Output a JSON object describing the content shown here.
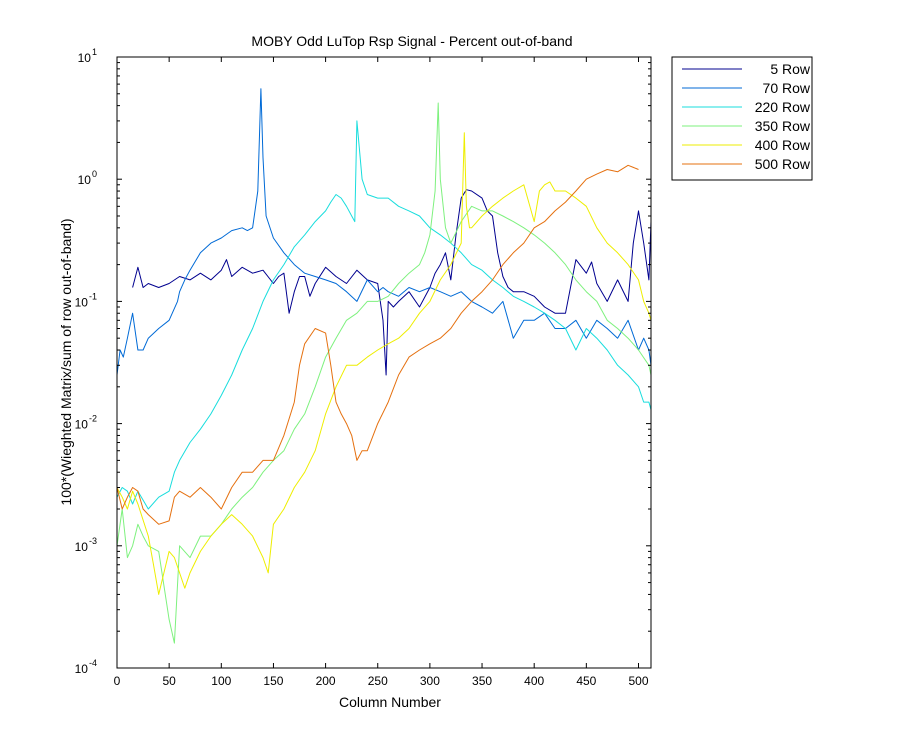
{
  "chart_data": {
    "type": "line",
    "title": "MOBY Odd LuTop Rsp Signal - Percent out-of-band",
    "xlabel": "Column Number",
    "ylabel": "100*(Wieghted Matrix/sum of row out-of-band)",
    "xlim": [
      0,
      512
    ],
    "ylim": [
      0.0001,
      10
    ],
    "yscale": "log",
    "xticks": [
      0,
      50,
      100,
      150,
      200,
      250,
      300,
      350,
      400,
      450,
      500
    ],
    "yticks": [
      {
        "value": 0.0001,
        "base": "10",
        "exp": "-4"
      },
      {
        "value": 0.001,
        "base": "10",
        "exp": "-3"
      },
      {
        "value": 0.01,
        "base": "10",
        "exp": "-2"
      },
      {
        "value": 0.1,
        "base": "10",
        "exp": "-1"
      },
      {
        "value": 1,
        "base": "10",
        "exp": "0"
      },
      {
        "value": 10,
        "base": "10",
        "exp": "1"
      }
    ],
    "grid": false,
    "legend_position": "outside-top-right",
    "series": [
      {
        "name": "5 Row",
        "color": "#00008F",
        "x": [
          15,
          20,
          25,
          30,
          40,
          50,
          60,
          70,
          80,
          90,
          100,
          105,
          110,
          120,
          130,
          140,
          150,
          155,
          160,
          165,
          170,
          175,
          180,
          185,
          190,
          200,
          210,
          220,
          230,
          240,
          250,
          255,
          258,
          260,
          265,
          270,
          280,
          290,
          300,
          305,
          310,
          315,
          320,
          325,
          330,
          335,
          340,
          350,
          355,
          360,
          365,
          370,
          375,
          380,
          390,
          400,
          410,
          420,
          430,
          440,
          450,
          455,
          460,
          470,
          480,
          490,
          495,
          500,
          505,
          510,
          512
        ],
        "y": [
          0.13,
          0.19,
          0.13,
          0.14,
          0.13,
          0.14,
          0.16,
          0.15,
          0.17,
          0.15,
          0.18,
          0.22,
          0.16,
          0.19,
          0.17,
          0.18,
          0.14,
          0.16,
          0.17,
          0.08,
          0.12,
          0.16,
          0.16,
          0.11,
          0.14,
          0.19,
          0.16,
          0.14,
          0.18,
          0.15,
          0.14,
          0.07,
          0.025,
          0.1,
          0.09,
          0.1,
          0.12,
          0.09,
          0.13,
          0.17,
          0.2,
          0.25,
          0.15,
          0.35,
          0.7,
          0.82,
          0.8,
          0.7,
          0.55,
          0.5,
          0.25,
          0.16,
          0.13,
          0.12,
          0.12,
          0.11,
          0.09,
          0.08,
          0.08,
          0.22,
          0.17,
          0.21,
          0.14,
          0.1,
          0.15,
          0.1,
          0.3,
          0.55,
          0.3,
          0.15,
          0.45
        ]
      },
      {
        "name": "70 Row",
        "color": "#006AD6",
        "x": [
          0,
          3,
          6,
          10,
          15,
          20,
          25,
          30,
          40,
          50,
          58,
          60,
          65,
          70,
          80,
          90,
          100,
          110,
          120,
          125,
          130,
          135,
          138,
          140,
          143,
          150,
          160,
          170,
          180,
          190,
          200,
          210,
          220,
          230,
          240,
          250,
          255,
          260,
          270,
          280,
          290,
          300,
          310,
          320,
          330,
          340,
          350,
          360,
          370,
          380,
          390,
          400,
          410,
          420,
          430,
          440,
          450,
          460,
          470,
          480,
          490,
          500,
          505,
          510,
          512
        ],
        "y": [
          0.025,
          0.04,
          0.035,
          0.05,
          0.08,
          0.04,
          0.04,
          0.05,
          0.06,
          0.07,
          0.1,
          0.12,
          0.15,
          0.18,
          0.25,
          0.3,
          0.33,
          0.38,
          0.4,
          0.38,
          0.4,
          0.8,
          5.5,
          1.5,
          0.5,
          0.33,
          0.25,
          0.2,
          0.17,
          0.16,
          0.15,
          0.14,
          0.12,
          0.1,
          0.15,
          0.12,
          0.13,
          0.12,
          0.11,
          0.13,
          0.12,
          0.13,
          0.12,
          0.11,
          0.12,
          0.1,
          0.09,
          0.08,
          0.1,
          0.05,
          0.07,
          0.07,
          0.08,
          0.06,
          0.06,
          0.07,
          0.05,
          0.07,
          0.06,
          0.05,
          0.07,
          0.04,
          0.05,
          0.04,
          0.03
        ]
      },
      {
        "name": "220 Row",
        "color": "#18DDDD",
        "x": [
          0,
          5,
          10,
          15,
          20,
          30,
          40,
          50,
          55,
          60,
          70,
          80,
          90,
          100,
          110,
          120,
          130,
          140,
          150,
          160,
          170,
          180,
          190,
          200,
          205,
          210,
          215,
          220,
          225,
          228,
          230,
          235,
          240,
          250,
          260,
          270,
          280,
          290,
          300,
          310,
          320,
          330,
          340,
          350,
          360,
          370,
          380,
          390,
          400,
          410,
          420,
          430,
          440,
          450,
          460,
          470,
          480,
          490,
          500,
          505,
          510,
          512
        ],
        "y": [
          0.0025,
          0.003,
          0.0028,
          0.0022,
          0.0028,
          0.002,
          0.0025,
          0.0028,
          0.004,
          0.005,
          0.007,
          0.009,
          0.012,
          0.017,
          0.025,
          0.04,
          0.06,
          0.1,
          0.15,
          0.2,
          0.28,
          0.35,
          0.45,
          0.55,
          0.65,
          0.75,
          0.7,
          0.6,
          0.5,
          0.45,
          3.0,
          1.0,
          0.75,
          0.7,
          0.7,
          0.6,
          0.55,
          0.5,
          0.4,
          0.35,
          0.3,
          0.25,
          0.2,
          0.18,
          0.15,
          0.13,
          0.11,
          0.1,
          0.09,
          0.08,
          0.07,
          0.06,
          0.04,
          0.06,
          0.05,
          0.04,
          0.03,
          0.025,
          0.02,
          0.015,
          0.015,
          0.013
        ]
      },
      {
        "name": "350 Row",
        "color": "#7EF17E",
        "x": [
          0,
          5,
          10,
          15,
          20,
          25,
          30,
          40,
          50,
          55,
          60,
          70,
          80,
          90,
          100,
          110,
          120,
          130,
          140,
          150,
          160,
          170,
          180,
          190,
          200,
          210,
          220,
          230,
          240,
          250,
          260,
          270,
          280,
          290,
          295,
          300,
          305,
          308,
          310,
          315,
          320,
          330,
          340,
          350,
          360,
          370,
          380,
          390,
          400,
          410,
          420,
          430,
          440,
          450,
          460,
          470,
          480,
          490,
          500,
          510,
          512
        ],
        "y": [
          0.001,
          0.002,
          0.0008,
          0.001,
          0.0015,
          0.0012,
          0.001,
          0.0009,
          0.00025,
          0.00016,
          0.001,
          0.0008,
          0.0012,
          0.0012,
          0.0015,
          0.002,
          0.0025,
          0.003,
          0.004,
          0.005,
          0.006,
          0.009,
          0.012,
          0.02,
          0.035,
          0.05,
          0.07,
          0.08,
          0.1,
          0.1,
          0.11,
          0.14,
          0.17,
          0.2,
          0.25,
          0.35,
          0.8,
          4.2,
          1.0,
          0.4,
          0.3,
          0.45,
          0.6,
          0.55,
          0.55,
          0.5,
          0.45,
          0.4,
          0.35,
          0.3,
          0.25,
          0.2,
          0.15,
          0.12,
          0.1,
          0.07,
          0.06,
          0.05,
          0.04,
          0.03,
          0.025
        ]
      },
      {
        "name": "400 Row",
        "color": "#EEEE00",
        "x": [
          0,
          5,
          10,
          15,
          20,
          30,
          35,
          40,
          45,
          50,
          55,
          60,
          65,
          70,
          80,
          90,
          100,
          110,
          120,
          130,
          140,
          145,
          150,
          160,
          170,
          180,
          190,
          200,
          210,
          220,
          230,
          240,
          250,
          260,
          270,
          280,
          290,
          300,
          310,
          320,
          330,
          333,
          335,
          338,
          340,
          350,
          360,
          370,
          380,
          390,
          400,
          405,
          410,
          415,
          420,
          430,
          440,
          450,
          460,
          470,
          480,
          490,
          500,
          505,
          510,
          512
        ],
        "y": [
          0.003,
          0.0025,
          0.002,
          0.0028,
          0.0022,
          0.0012,
          0.0007,
          0.0004,
          0.0006,
          0.0009,
          0.0008,
          0.0006,
          0.00045,
          0.0006,
          0.0009,
          0.0012,
          0.0015,
          0.0018,
          0.0015,
          0.0012,
          0.0008,
          0.0006,
          0.0015,
          0.002,
          0.003,
          0.004,
          0.006,
          0.012,
          0.02,
          0.03,
          0.03,
          0.035,
          0.04,
          0.045,
          0.05,
          0.06,
          0.08,
          0.1,
          0.15,
          0.2,
          0.3,
          2.4,
          0.6,
          0.4,
          0.4,
          0.5,
          0.6,
          0.7,
          0.8,
          0.9,
          0.45,
          0.8,
          0.9,
          0.95,
          0.8,
          0.8,
          0.7,
          0.6,
          0.4,
          0.3,
          0.25,
          0.2,
          0.15,
          0.1,
          0.08,
          0.07
        ]
      },
      {
        "name": "500 Row",
        "color": "#E5700F",
        "x": [
          0,
          5,
          10,
          15,
          20,
          25,
          30,
          40,
          50,
          55,
          60,
          70,
          80,
          90,
          100,
          110,
          120,
          130,
          140,
          150,
          160,
          170,
          175,
          180,
          190,
          200,
          205,
          210,
          215,
          220,
          225,
          230,
          235,
          240,
          250,
          260,
          270,
          280,
          290,
          300,
          310,
          320,
          330,
          340,
          350,
          360,
          370,
          380,
          390,
          400,
          410,
          420,
          430,
          440,
          450,
          460,
          470,
          480,
          490,
          495,
          500
        ],
        "y": [
          0.003,
          0.002,
          0.0025,
          0.003,
          0.0028,
          0.002,
          0.0018,
          0.0015,
          0.0016,
          0.0025,
          0.0028,
          0.0025,
          0.003,
          0.0025,
          0.002,
          0.003,
          0.004,
          0.004,
          0.005,
          0.005,
          0.008,
          0.015,
          0.03,
          0.045,
          0.06,
          0.055,
          0.03,
          0.015,
          0.012,
          0.01,
          0.008,
          0.005,
          0.006,
          0.006,
          0.01,
          0.015,
          0.025,
          0.035,
          0.04,
          0.045,
          0.05,
          0.06,
          0.08,
          0.1,
          0.12,
          0.15,
          0.2,
          0.25,
          0.3,
          0.4,
          0.45,
          0.55,
          0.65,
          0.8,
          1.0,
          1.1,
          1.2,
          1.15,
          1.3,
          1.25,
          1.2
        ]
      }
    ]
  }
}
